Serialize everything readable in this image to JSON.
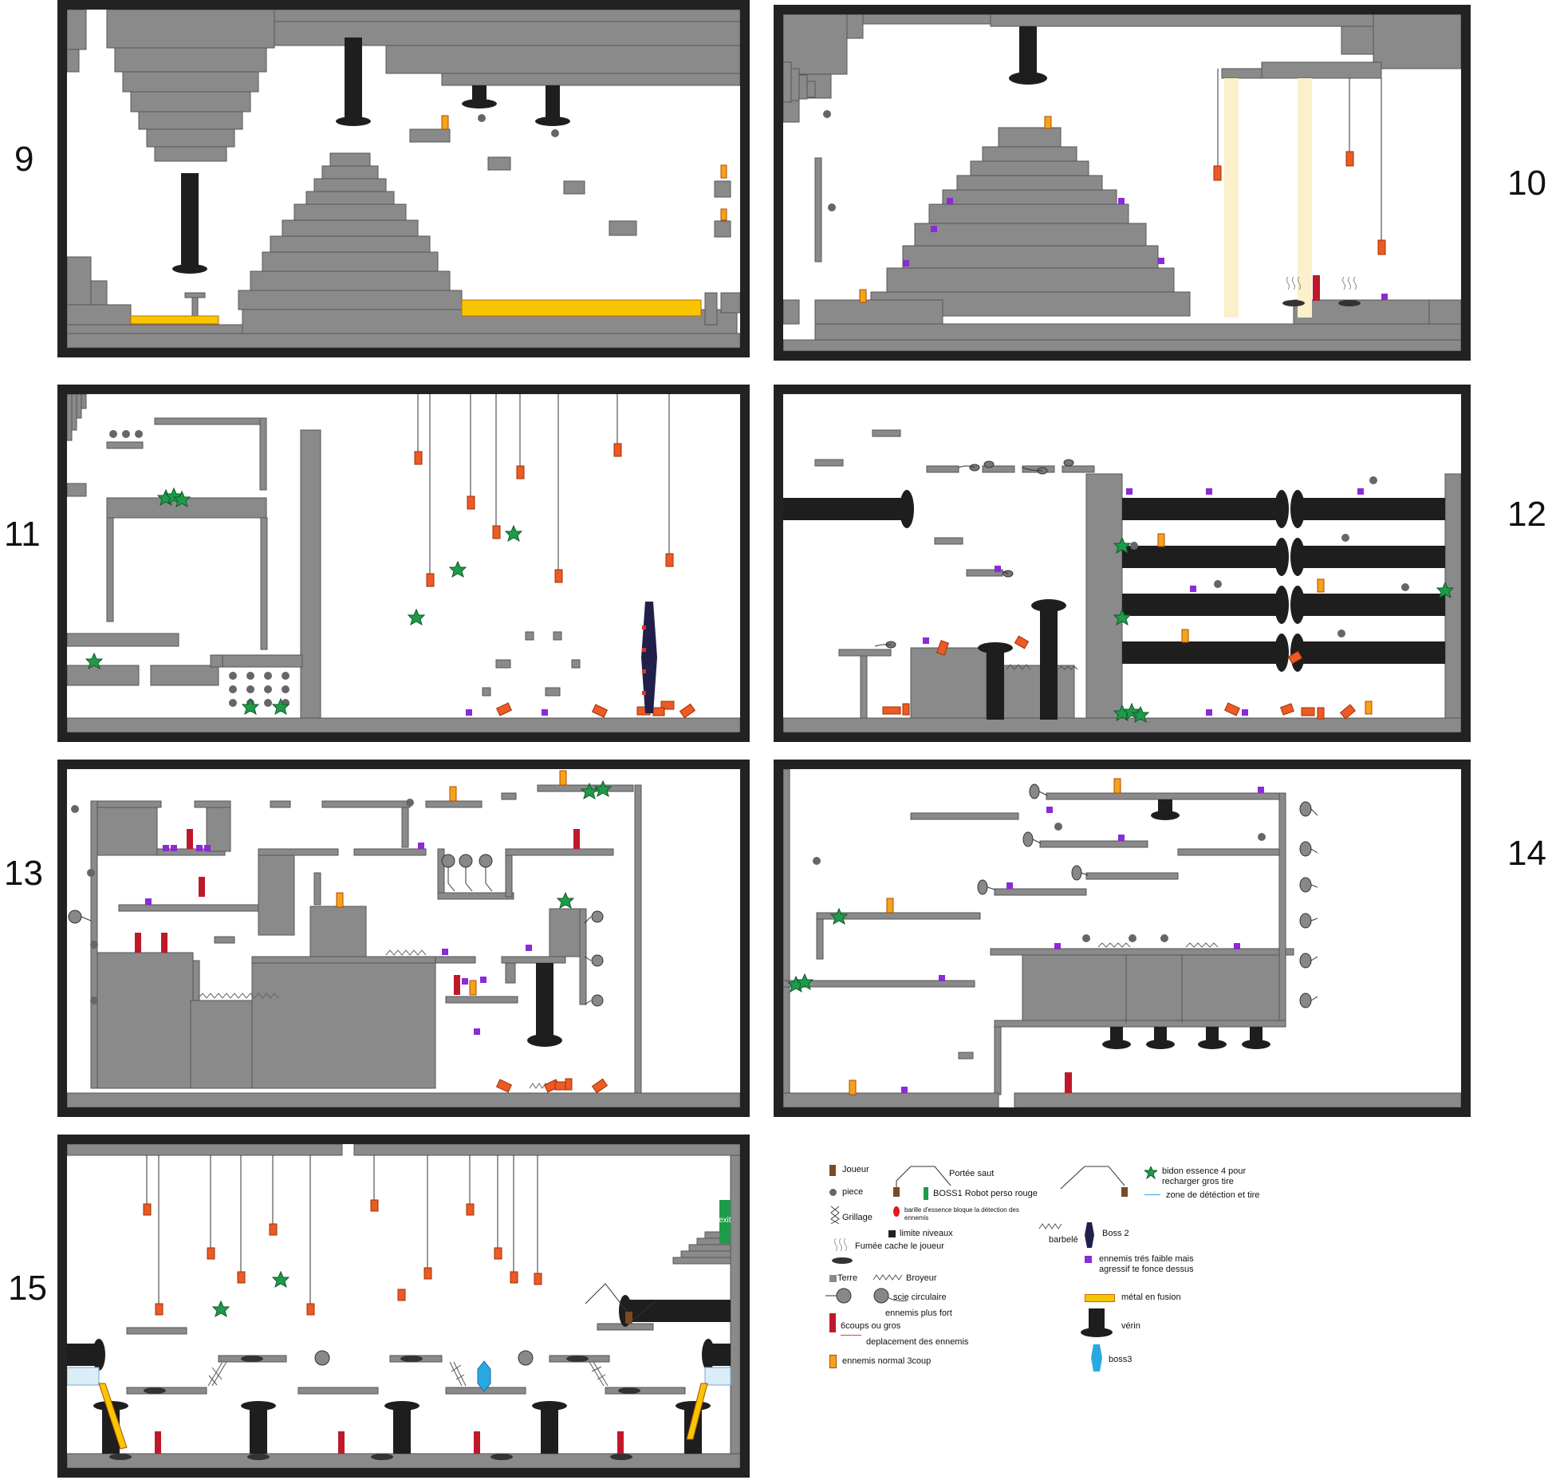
{
  "levels": [
    {
      "number": "9"
    },
    {
      "number": "10"
    },
    {
      "number": "11"
    },
    {
      "number": "12"
    },
    {
      "number": "13"
    },
    {
      "number": "14"
    },
    {
      "number": "15"
    }
  ],
  "exit_label": "exit",
  "legend": {
    "joueur": "Joueur",
    "portee_saut": "Portée saut",
    "bidon": "bidon essence 4 pour recharger gros tire",
    "piece": "piece",
    "boss1": "BOSS1  Robot perso rouge",
    "zone_detection": "zone de détéction et tire",
    "grillage": "Grillage",
    "barille": "barille d'essence bloque la détection des ennemis",
    "limite": "limite niveaux",
    "barbele": "barbelé",
    "boss2": "Boss 2",
    "fumee": "Fumée cache le joueur",
    "ennemi_faible": "ennemis trés faible mais agressif te fonce dessus",
    "terre": "Terre",
    "broyeur": "Broyeur",
    "scie": "scie circulaire",
    "ennemi_fort": "ennemis plus fort",
    "six_coups": "6coups ou gros",
    "metal": "métal en fusion",
    "deplacement": "deplacement des ennemis",
    "verin": "vérin",
    "ennemi_normal": "ennemis normal 3coup",
    "boss3": "boss3"
  },
  "colors": {
    "terre": "#8a8a8a",
    "border": "#222222",
    "verin": "#1e1e1e",
    "metal": "#f7c600",
    "ennemi_faible": "#8a2bd6",
    "ennemi_fort": "#c0182b",
    "ennemi_normal": "#f6a21a",
    "orange_hanging": "#ec5a26",
    "bidon": "#1f9a4a",
    "boss2": "#20204a",
    "boss3": "#2aa9e0",
    "joueur": "#7a4a26",
    "light_beam": "#fbf0c9"
  }
}
